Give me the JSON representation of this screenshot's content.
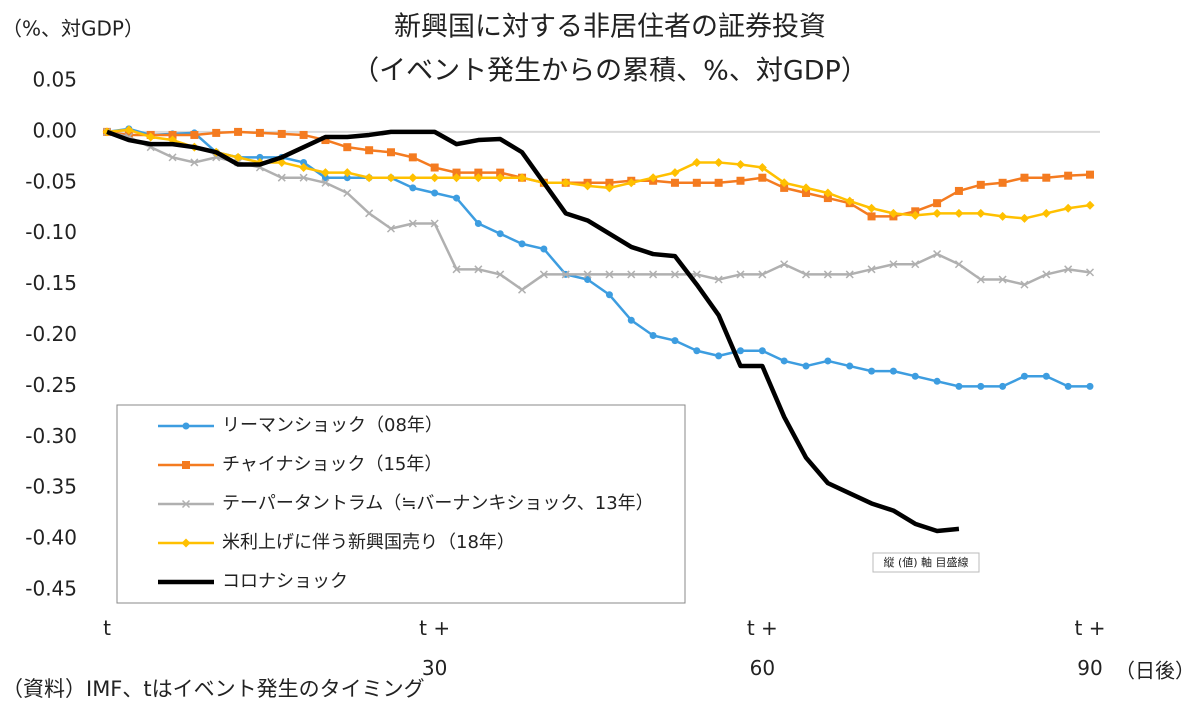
{
  "chart_data": {
    "type": "line",
    "title": "新興国に対する非居住者の証券投資",
    "subtitle": "（イベント発生からの累積、%、対GDP）",
    "y_label": "（%、対GDP）",
    "x_label": "（日後）",
    "source": "（資料）IMF、tはイベント発生のタイミング",
    "annotation": "縦 (値) 軸 目盛線",
    "x": [
      0,
      2,
      4,
      6,
      8,
      10,
      12,
      14,
      16,
      18,
      20,
      22,
      24,
      26,
      28,
      30,
      32,
      34,
      36,
      38,
      40,
      42,
      44,
      46,
      48,
      50,
      52,
      54,
      56,
      58,
      60,
      62,
      64,
      66,
      68,
      70,
      72,
      74,
      76,
      78,
      80,
      82,
      84,
      86,
      88,
      90
    ],
    "xlim": [
      0,
      90
    ],
    "xticks": [
      {
        "value": 0,
        "label": "t"
      },
      {
        "value": 30,
        "label": "t +\n30"
      },
      {
        "value": 60,
        "label": "t +\n60"
      },
      {
        "value": 90,
        "label": "t +\n90"
      }
    ],
    "ylim": [
      -0.45,
      0.05
    ],
    "yticks": [
      0.05,
      {
        "value": 0,
        "label": "0.00"
      },
      -0.05,
      {
        "value": -0.1,
        "label": "-0.10"
      },
      -0.15,
      {
        "value": -0.2,
        "label": "-0.20"
      },
      -0.25,
      {
        "value": -0.3,
        "label": "-0.30"
      },
      -0.35,
      {
        "value": -0.4,
        "label": "-0.40"
      },
      -0.45
    ],
    "grid": false,
    "legend": "lower left",
    "series": [
      {
        "name": "リーマンショック（08年）",
        "color": "#3d9de0",
        "marker": "circle",
        "values": [
          0,
          0.003,
          -0.003,
          -0.002,
          -0.001,
          -0.02,
          -0.025,
          -0.025,
          -0.025,
          -0.03,
          -0.045,
          -0.045,
          -0.045,
          -0.045,
          -0.055,
          -0.06,
          -0.065,
          -0.09,
          -0.1,
          -0.11,
          -0.115,
          -0.14,
          -0.145,
          -0.16,
          -0.185,
          -0.2,
          -0.205,
          -0.215,
          -0.22,
          -0.215,
          -0.215,
          -0.225,
          -0.23,
          -0.225,
          -0.23,
          -0.235,
          -0.235,
          -0.24,
          -0.245,
          -0.25,
          -0.25,
          -0.25,
          -0.24,
          -0.24,
          -0.25,
          -0.25
        ]
      },
      {
        "name": "チャイナショック（15年）",
        "color": "#f47b20",
        "marker": "square",
        "values": [
          0,
          -0.003,
          -0.003,
          -0.003,
          -0.003,
          -0.001,
          0,
          -0.001,
          -0.002,
          -0.003,
          -0.008,
          -0.015,
          -0.018,
          -0.02,
          -0.025,
          -0.035,
          -0.04,
          -0.04,
          -0.04,
          -0.045,
          -0.05,
          -0.05,
          -0.05,
          -0.05,
          -0.048,
          -0.048,
          -0.05,
          -0.05,
          -0.05,
          -0.048,
          -0.045,
          -0.055,
          -0.06,
          -0.065,
          -0.07,
          -0.083,
          -0.083,
          -0.078,
          -0.07,
          -0.058,
          -0.052,
          -0.05,
          -0.045,
          -0.045,
          -0.043,
          -0.042
        ]
      },
      {
        "name": "テーパータントラム（≒バーナンキショック、13年）",
        "color": "#b0b0b0",
        "marker": "cross",
        "values": [
          0,
          -0.005,
          -0.015,
          -0.025,
          -0.03,
          -0.025,
          -0.03,
          -0.035,
          -0.045,
          -0.045,
          -0.05,
          -0.06,
          -0.08,
          -0.095,
          -0.09,
          -0.09,
          -0.135,
          -0.135,
          -0.14,
          -0.155,
          -0.14,
          -0.14,
          -0.14,
          -0.14,
          -0.14,
          -0.14,
          -0.14,
          -0.14,
          -0.145,
          -0.14,
          -0.14,
          -0.13,
          -0.14,
          -0.14,
          -0.14,
          -0.135,
          -0.13,
          -0.13,
          -0.12,
          -0.13,
          -0.145,
          -0.145,
          -0.15,
          -0.14,
          -0.135,
          -0.138
        ]
      },
      {
        "name": "米利上げに伴う新興国売り（18年）",
        "color": "#ffc000",
        "marker": "diamond",
        "values": [
          0,
          0.002,
          -0.005,
          -0.008,
          -0.015,
          -0.02,
          -0.025,
          -0.03,
          -0.03,
          -0.035,
          -0.04,
          -0.04,
          -0.045,
          -0.045,
          -0.045,
          -0.045,
          -0.045,
          -0.045,
          -0.045,
          -0.045,
          -0.05,
          -0.05,
          -0.053,
          -0.055,
          -0.05,
          -0.045,
          -0.04,
          -0.03,
          -0.03,
          -0.032,
          -0.035,
          -0.05,
          -0.055,
          -0.06,
          -0.068,
          -0.075,
          -0.08,
          -0.082,
          -0.08,
          -0.08,
          -0.08,
          -0.083,
          -0.085,
          -0.08,
          -0.075,
          -0.072
        ]
      },
      {
        "name": "コロナショック",
        "color": "#000000",
        "marker": "none",
        "values": [
          0,
          -0.008,
          -0.012,
          -0.012,
          -0.015,
          -0.02,
          -0.032,
          -0.032,
          -0.025,
          -0.015,
          -0.005,
          -0.005,
          -0.003,
          0,
          0,
          0,
          -0.012,
          -0.008,
          -0.007,
          -0.02,
          -0.05,
          -0.08,
          -0.087,
          -0.1,
          -0.113,
          -0.12,
          -0.122,
          -0.15,
          -0.18,
          -0.23,
          -0.23,
          -0.28,
          -0.32,
          -0.345,
          -0.355,
          -0.365,
          -0.372,
          -0.385,
          -0.392,
          -0.39,
          null,
          null,
          null,
          null,
          null,
          null
        ]
      }
    ]
  }
}
